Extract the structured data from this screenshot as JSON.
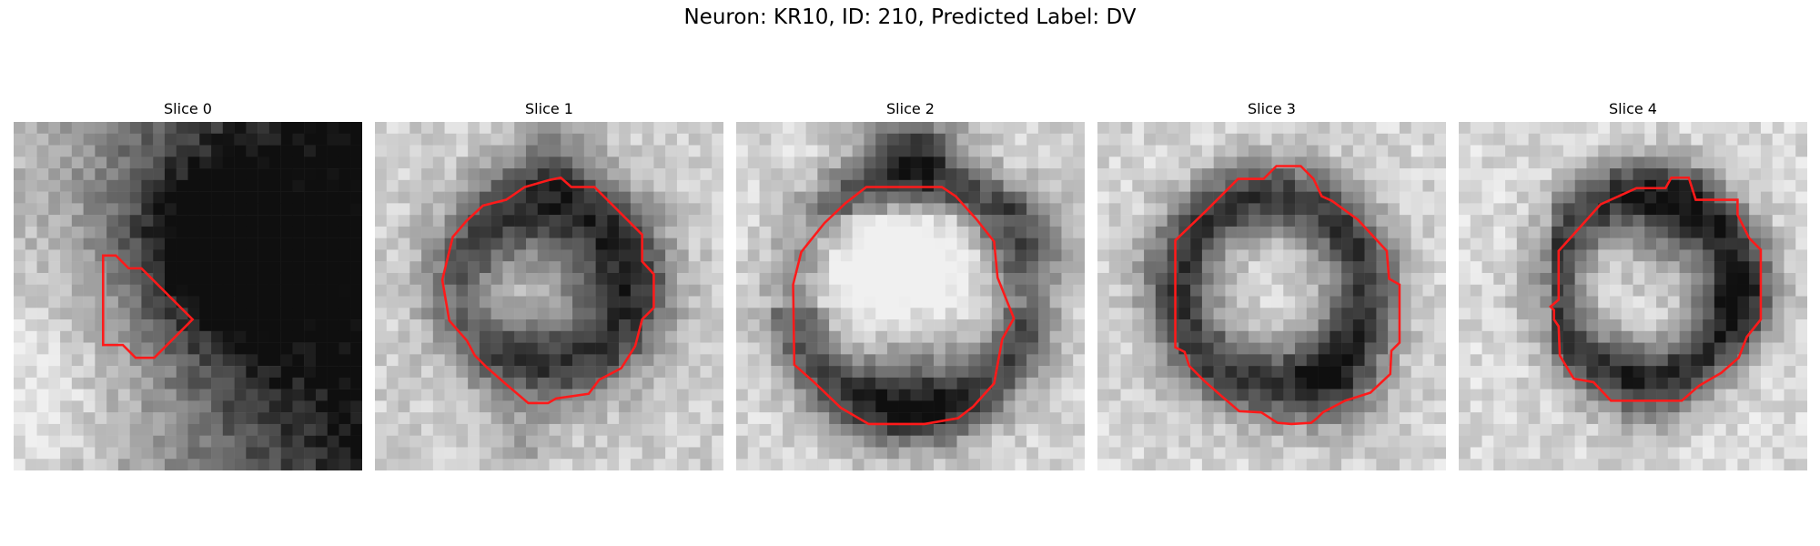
{
  "title": "Neuron: KR10, ID: 210, Predicted Label: DV",
  "contour_color": "#ff1a1a",
  "panels": [
    {
      "label": "Slice 0",
      "pattern": "dark-upper-right-blob"
    },
    {
      "label": "Slice 1",
      "pattern": "ring-dark-right"
    },
    {
      "label": "Slice 2",
      "pattern": "bright-center-dark-top-bottom"
    },
    {
      "label": "Slice 3",
      "pattern": "dark-ring"
    },
    {
      "label": "Slice 4",
      "pattern": "partial-dark-ring"
    }
  ]
}
